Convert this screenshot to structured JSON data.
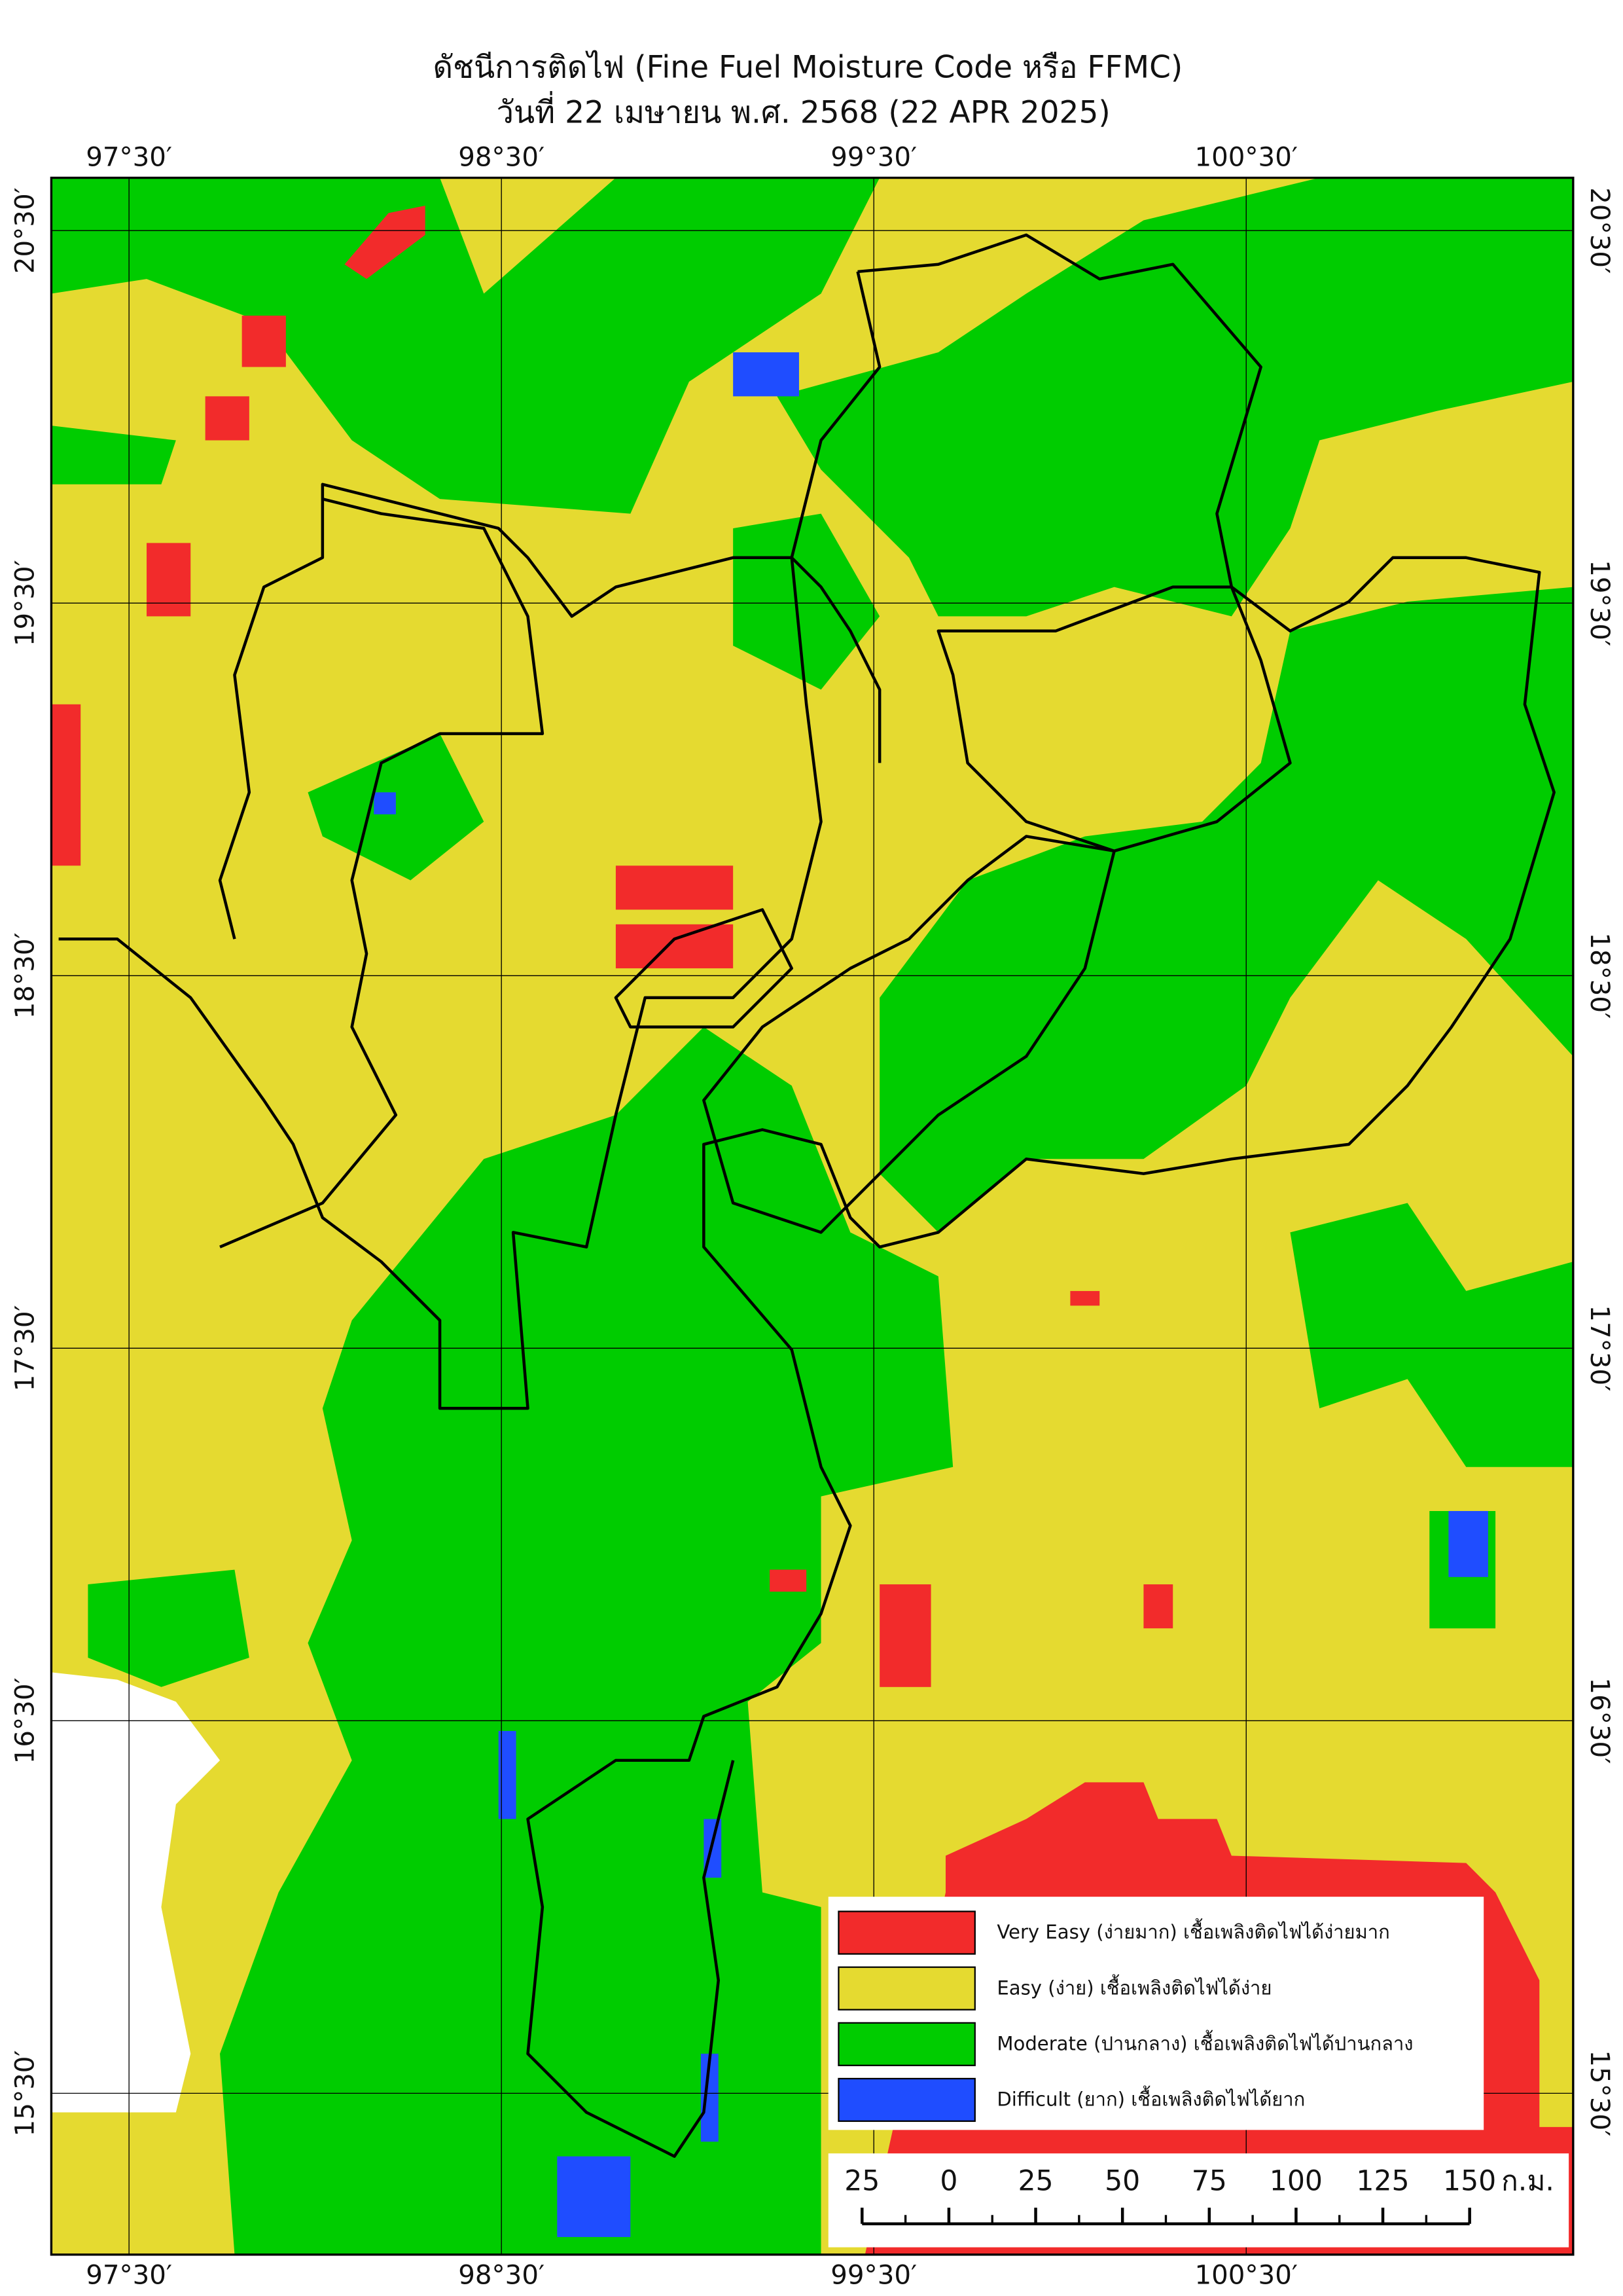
{
  "header": {
    "title": "ดัชนีการติดไฟ (Fine Fuel Moisture Code หรือ FFMC)",
    "subtitle": "วันที่ 22 เมษายน พ.ศ. 2568 (22 APR 2025)"
  },
  "map": {
    "longitude_labels": [
      "97°30′",
      "98°30′",
      "99°30′",
      "100°30′"
    ],
    "latitude_labels": [
      "20°30′",
      "19°30′",
      "18°30′",
      "17°30′",
      "16°30′",
      "15°30′"
    ]
  },
  "legend": [
    {
      "label": "Very Easy (ง่ายมาก) เชื้อเพลิงติดไฟได้ง่ายมาก",
      "color": "#f22b2b"
    },
    {
      "label": "Easy (ง่าย) เชื้อเพลิงติดไฟได้ง่าย",
      "color": "#e5da30"
    },
    {
      "label": "Moderate (ปานกลาง) เชื้อเพลิงติดไฟได้ปานกลาง",
      "color": "#00cc00"
    },
    {
      "label": "Difficult (ยาก) เชื้อเพลิงติดไฟได้ยาก",
      "color": "#1f4dff"
    }
  ],
  "scale_bar": {
    "labels": [
      "25",
      "0",
      "25",
      "50",
      "75",
      "100",
      "125",
      "150"
    ],
    "unit": "ก.ม."
  }
}
